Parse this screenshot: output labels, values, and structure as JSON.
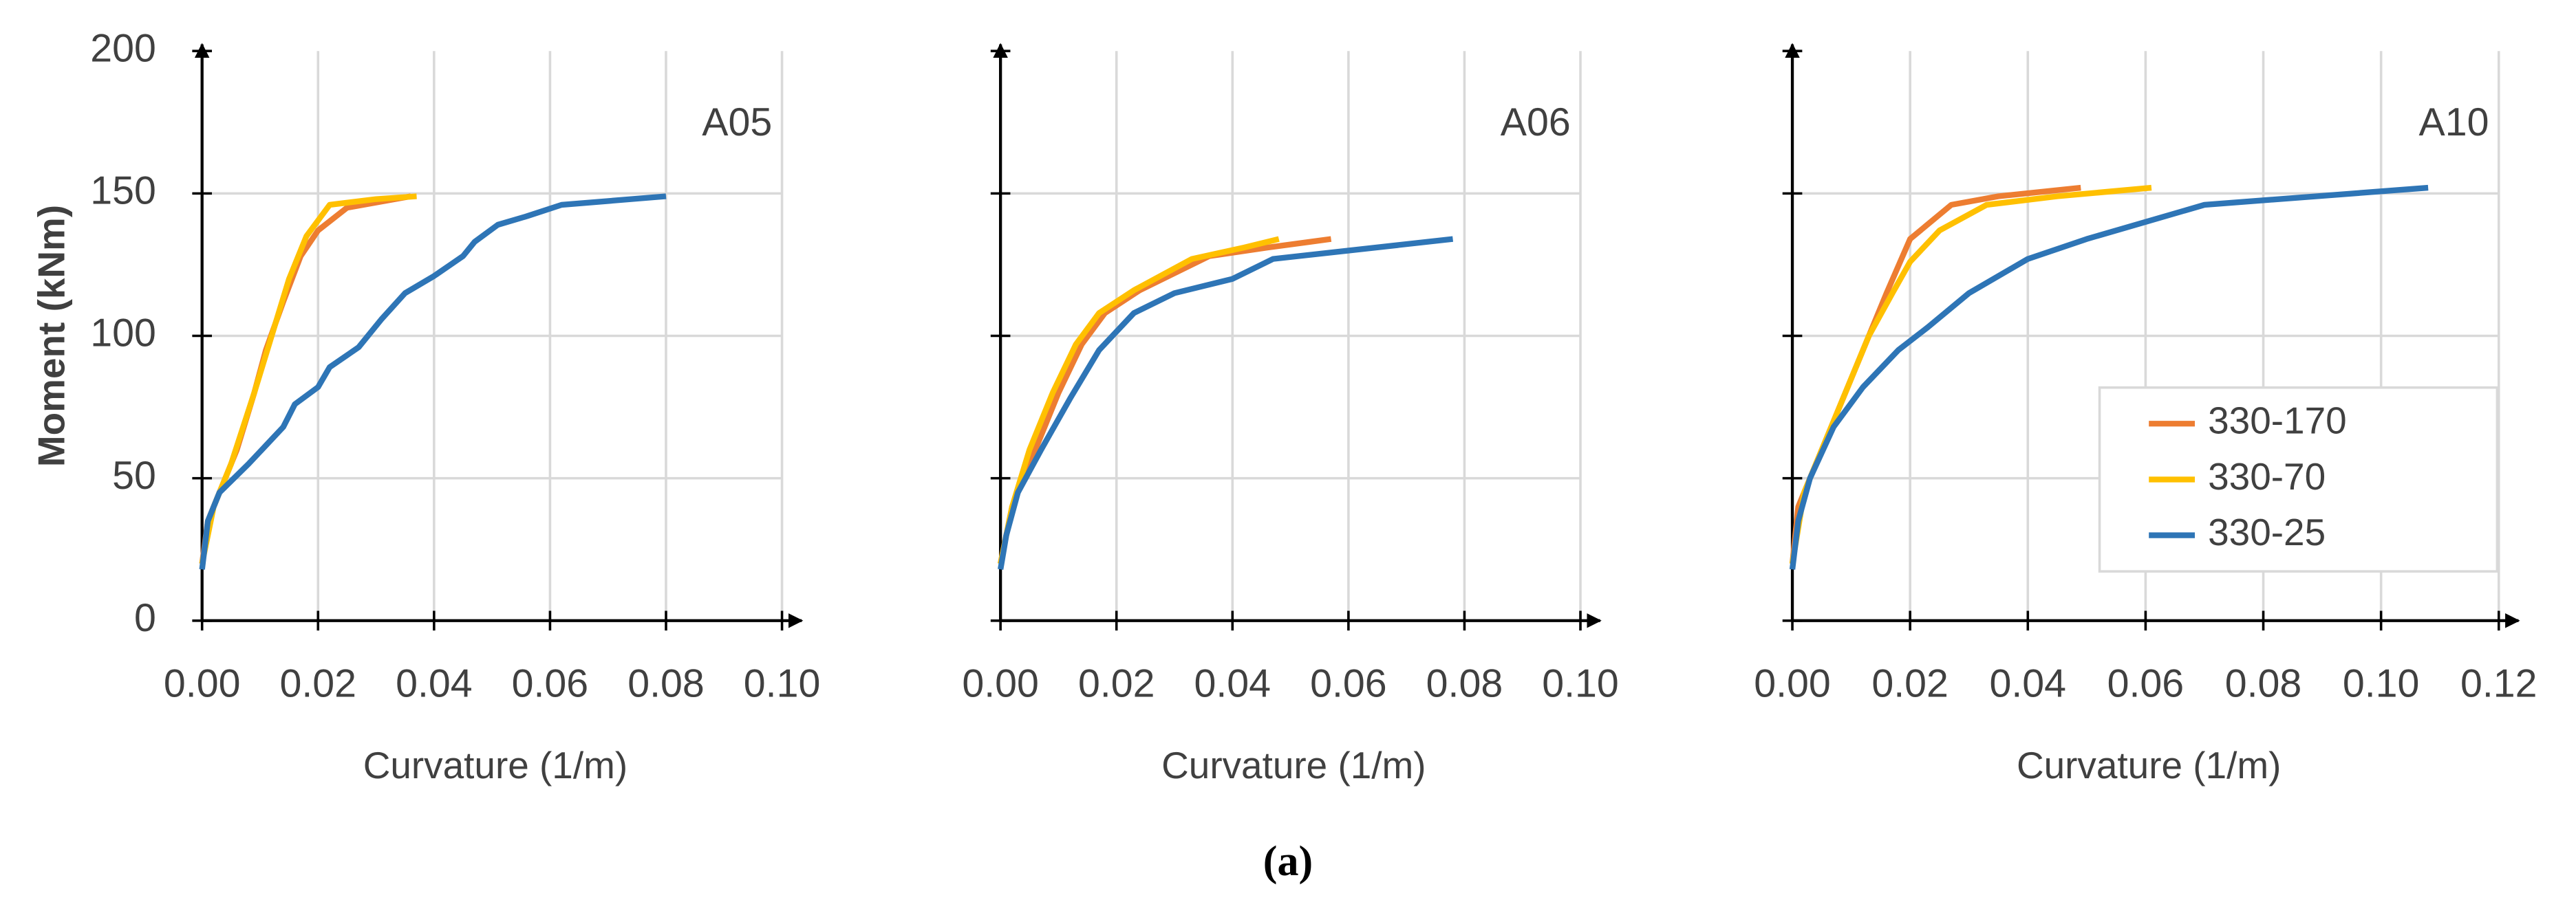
{
  "chart_data": [
    {
      "type": "line",
      "annotation": "A05",
      "xlabel": "Curvature (1/m)",
      "ylabel": "Moment (kNm)",
      "xlim": [
        0,
        0.1
      ],
      "xticks": [
        {
          "value": 0,
          "label": "0.00"
        },
        {
          "value": 0.02,
          "label": "0.02"
        },
        {
          "value": 0.04,
          "label": "0.04"
        },
        {
          "value": 0.06,
          "label": "0.06"
        },
        {
          "value": 0.08,
          "label": "0.08"
        },
        {
          "value": 0.1,
          "label": "0.10"
        }
      ],
      "ylim": [
        0,
        200
      ],
      "yticks": [
        0,
        50,
        100,
        150,
        200
      ],
      "ytick_labels": true,
      "grid": true,
      "legend": false,
      "series": [
        {
          "name": "330-170",
          "color": "#ED7D31",
          "x": [
            0,
            0.001,
            0.003,
            0.006,
            0.009,
            0.011,
            0.014,
            0.017,
            0.02,
            0.025,
            0.036
          ],
          "values": [
            20,
            35,
            45,
            60,
            80,
            95,
            112,
            128,
            137,
            145,
            149
          ]
        },
        {
          "name": "330-70",
          "color": "#FFC000",
          "x": [
            0,
            0.002,
            0.005,
            0.009,
            0.012,
            0.015,
            0.018,
            0.022,
            0.03,
            0.037
          ],
          "values": [
            20,
            40,
            55,
            80,
            100,
            120,
            135,
            146,
            148,
            149
          ]
        },
        {
          "name": "330-25",
          "color": "#2E75B6",
          "x": [
            0,
            0.001,
            0.003,
            0.008,
            0.014,
            0.016,
            0.02,
            0.022,
            0.027,
            0.031,
            0.035,
            0.04,
            0.045,
            0.047,
            0.051,
            0.056,
            0.062,
            0.08
          ],
          "values": [
            18,
            35,
            45,
            55,
            68,
            76,
            82,
            89,
            96,
            106,
            115,
            121,
            128,
            133,
            139,
            142,
            146,
            149
          ]
        }
      ]
    },
    {
      "type": "line",
      "annotation": "A06",
      "xlabel": "Curvature (1/m)",
      "xlim": [
        0,
        0.1
      ],
      "xticks": [
        {
          "value": 0,
          "label": "0.00"
        },
        {
          "value": 0.02,
          "label": "0.02"
        },
        {
          "value": 0.04,
          "label": "0.04"
        },
        {
          "value": 0.06,
          "label": "0.06"
        },
        {
          "value": 0.08,
          "label": "0.08"
        },
        {
          "value": 0.1,
          "label": "0.10"
        }
      ],
      "ylim": [
        0,
        200
      ],
      "yticks": [
        0,
        50,
        100,
        150,
        200
      ],
      "ytick_labels": false,
      "grid": true,
      "legend": false,
      "series": [
        {
          "name": "330-170",
          "color": "#ED7D31",
          "x": [
            0,
            0.002,
            0.006,
            0.01,
            0.014,
            0.018,
            0.024,
            0.03,
            0.036,
            0.046,
            0.057
          ],
          "values": [
            20,
            40,
            60,
            80,
            97,
            108,
            116,
            122,
            128,
            131,
            134
          ]
        },
        {
          "name": "330-70",
          "color": "#FFC000",
          "x": [
            0,
            0.002,
            0.005,
            0.009,
            0.013,
            0.017,
            0.023,
            0.033,
            0.042,
            0.048
          ],
          "values": [
            20,
            40,
            60,
            80,
            97,
            108,
            116,
            127,
            131,
            134
          ]
        },
        {
          "name": "330-25",
          "color": "#2E75B6",
          "x": [
            0,
            0.001,
            0.003,
            0.007,
            0.012,
            0.017,
            0.023,
            0.03,
            0.04,
            0.047,
            0.078
          ],
          "values": [
            18,
            30,
            45,
            60,
            78,
            95,
            108,
            115,
            120,
            127,
            134
          ]
        }
      ]
    },
    {
      "type": "line",
      "annotation": "A10",
      "xlabel": "Curvature (1/m)",
      "xlim": [
        0,
        0.12
      ],
      "xticks": [
        {
          "value": 0,
          "label": "0.00"
        },
        {
          "value": 0.02,
          "label": "0.02"
        },
        {
          "value": 0.04,
          "label": "0.04"
        },
        {
          "value": 0.06,
          "label": "0.06"
        },
        {
          "value": 0.08,
          "label": "0.08"
        },
        {
          "value": 0.1,
          "label": "0.10"
        },
        {
          "value": 0.12,
          "label": "0.12"
        }
      ],
      "ylim": [
        0,
        200
      ],
      "yticks": [
        0,
        50,
        100,
        150,
        200
      ],
      "ytick_labels": false,
      "grid": true,
      "legend": "lower right",
      "series": [
        {
          "name": "330-170",
          "color": "#ED7D31",
          "x": [
            0,
            0.001,
            0.004,
            0.008,
            0.012,
            0.016,
            0.02,
            0.027,
            0.035,
            0.049
          ],
          "values": [
            20,
            40,
            55,
            75,
            95,
            115,
            134,
            146,
            149,
            152
          ]
        },
        {
          "name": "330-70",
          "color": "#FFC000",
          "x": [
            0,
            0.002,
            0.005,
            0.009,
            0.013,
            0.017,
            0.02,
            0.025,
            0.033,
            0.045,
            0.061
          ],
          "values": [
            20,
            45,
            60,
            80,
            100,
            115,
            126,
            137,
            146,
            149,
            152
          ]
        },
        {
          "name": "330-25",
          "color": "#2E75B6",
          "x": [
            0,
            0.001,
            0.003,
            0.007,
            0.012,
            0.018,
            0.023,
            0.03,
            0.04,
            0.05,
            0.07,
            0.108
          ],
          "values": [
            18,
            35,
            50,
            68,
            82,
            95,
            103,
            115,
            127,
            134,
            146,
            152
          ]
        }
      ]
    }
  ],
  "caption": "(a)"
}
